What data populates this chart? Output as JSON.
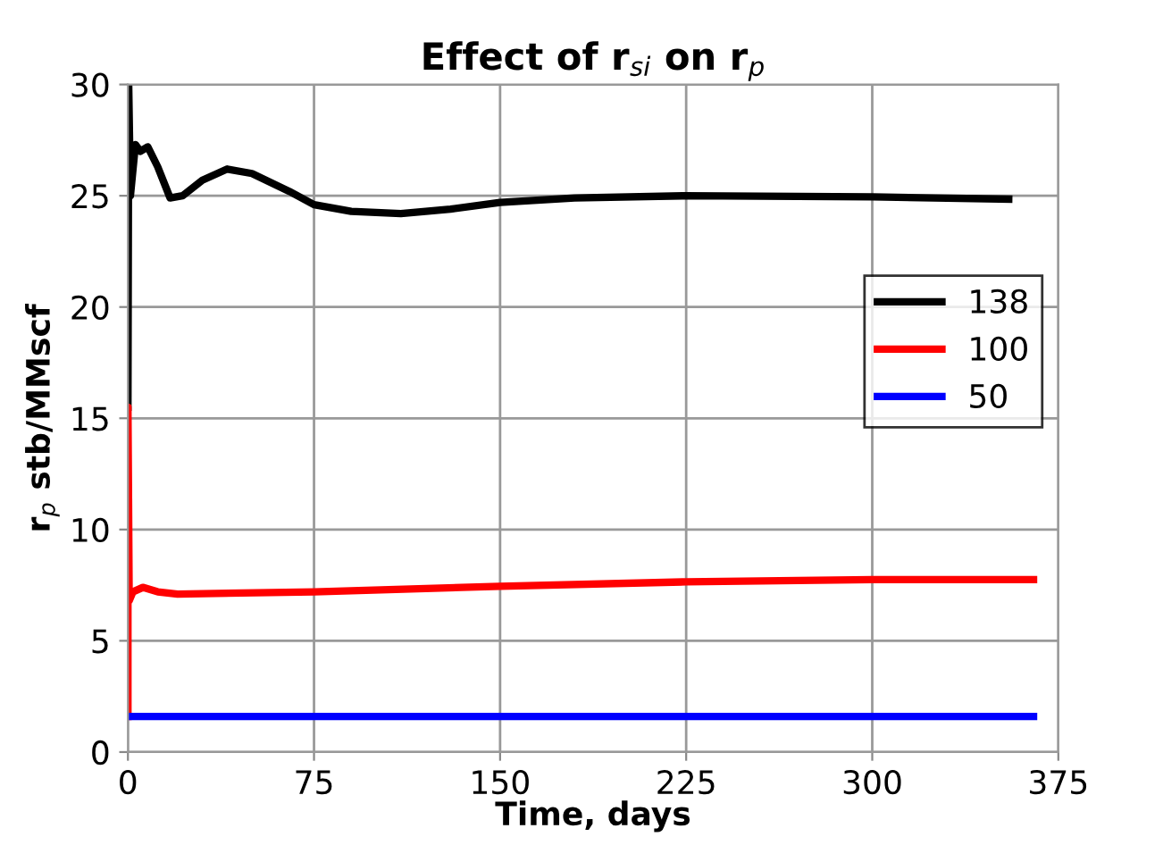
{
  "chart_data": {
    "type": "line",
    "title": "Effect of r$_{si}$ on r$_{p}$",
    "xlabel": "Time, days",
    "ylabel": "r$_{p}$ stb/MMscf",
    "series": [
      {
        "name": "138",
        "color": "#000000",
        "x": [
          0,
          0.3,
          1,
          3,
          5,
          8,
          12,
          17,
          22,
          30,
          40,
          50,
          65,
          75,
          90,
          110,
          130,
          150,
          180,
          225,
          300,
          355
        ],
        "values": [
          15.5,
          30,
          25,
          27.3,
          27.0,
          27.2,
          26.3,
          24.9,
          25.0,
          25.7,
          26.2,
          26.0,
          25.2,
          24.6,
          24.3,
          24.2,
          24.4,
          24.7,
          24.9,
          25.0,
          24.95,
          24.85
        ]
      },
      {
        "name": "100",
        "color": "#ff0000",
        "x": [
          0,
          0,
          0.5,
          2,
          6,
          12,
          20,
          75,
          150,
          225,
          300,
          365
        ],
        "values": [
          1.6,
          15.5,
          6.8,
          7.2,
          7.4,
          7.2,
          7.1,
          7.2,
          7.45,
          7.65,
          7.75,
          7.75
        ]
      },
      {
        "name": "50",
        "color": "#0000ff",
        "x": [
          0,
          365
        ],
        "values": [
          1.6,
          1.6
        ]
      }
    ],
    "xlim": [
      0,
      375
    ],
    "xticks": [
      0,
      75,
      150,
      225,
      300,
      375
    ],
    "ylim": [
      0,
      30
    ],
    "yticks": [
      0,
      5,
      10,
      15,
      20,
      25,
      30
    ],
    "grid": true,
    "legend": "right",
    "marker": "none",
    "line_style": "solid"
  }
}
